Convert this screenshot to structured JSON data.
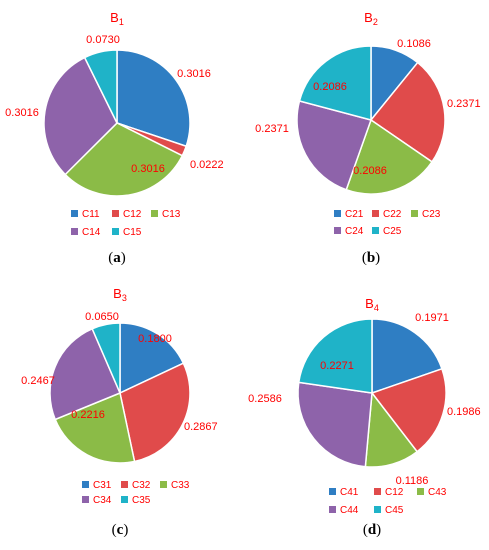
{
  "colors": {
    "palette": [
      "#2f7ec3",
      "#e04b4b",
      "#8bbb47",
      "#8e63aa",
      "#1fb3c8"
    ],
    "label_color": "#ff0000"
  },
  "chart_data": [
    {
      "type": "pie",
      "panel": "a",
      "title": {
        "main": "B",
        "sub": "1"
      },
      "caption": "a",
      "slices": [
        {
          "name": "C11",
          "value": 0.3016,
          "label": "0.3016"
        },
        {
          "name": "C12",
          "value": 0.0222,
          "label": "0.0222"
        },
        {
          "name": "C13",
          "value": 0.3016,
          "label": "0.3016"
        },
        {
          "name": "C14",
          "value": 0.3016,
          "label": "0.3016"
        },
        {
          "name": "C15",
          "value": 0.073,
          "label": "0.0730"
        }
      ],
      "legend": "bottom"
    },
    {
      "type": "pie",
      "panel": "b",
      "title": {
        "main": "B",
        "sub": "2"
      },
      "caption": "b",
      "slices": [
        {
          "name": "C21",
          "value": 0.1086,
          "label": "0.1086"
        },
        {
          "name": "C22",
          "value": 0.2371,
          "label": "0.2371"
        },
        {
          "name": "C23",
          "value": 0.2086,
          "label": "0.2086"
        },
        {
          "name": "C24",
          "value": 0.2371,
          "label": "0.2371"
        },
        {
          "name": "C25",
          "value": 0.2086,
          "label": "0.2086"
        }
      ],
      "legend": "bottom"
    },
    {
      "type": "pie",
      "panel": "c",
      "title": {
        "main": "B",
        "sub": "3"
      },
      "caption": "c",
      "slices": [
        {
          "name": "C31",
          "value": 0.18,
          "label": "0.1800"
        },
        {
          "name": "C32",
          "value": 0.2867,
          "label": "0.2867"
        },
        {
          "name": "C33",
          "value": 0.2216,
          "label": "0.2216"
        },
        {
          "name": "C34",
          "value": 0.2467,
          "label": "0.2467"
        },
        {
          "name": "C35",
          "value": 0.065,
          "label": "0.0650"
        }
      ],
      "legend": "bottom"
    },
    {
      "type": "pie",
      "panel": "d",
      "title": {
        "main": "B",
        "sub": "4"
      },
      "caption": "d",
      "slices": [
        {
          "name": "C41",
          "value": 0.1971,
          "label": "0.1971"
        },
        {
          "name": "C12",
          "value": 0.1986,
          "label": "0.1986"
        },
        {
          "name": "C43",
          "value": 0.1186,
          "label": "0.1186"
        },
        {
          "name": "C44",
          "value": 0.2586,
          "label": "0.2586"
        },
        {
          "name": "C45",
          "value": 0.2271,
          "label": "0.2271"
        }
      ],
      "legend": "bottom"
    }
  ]
}
